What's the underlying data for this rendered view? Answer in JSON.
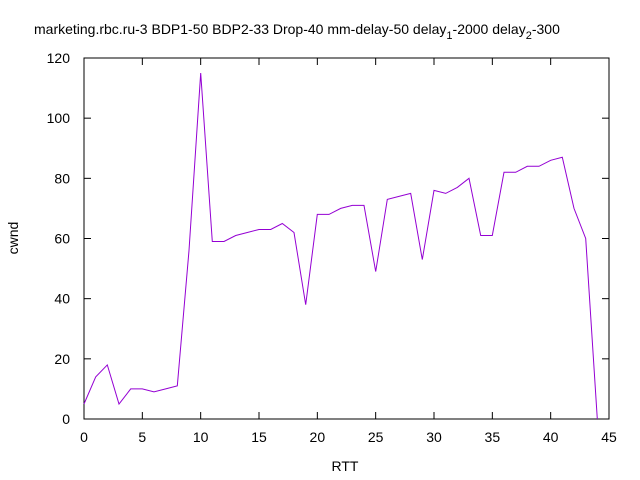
{
  "chart_data": {
    "type": "line",
    "title": "marketing.rbc.ru-3 BDP1-50 BDP2-33 Drop-40 mm-delay-50 delay",
    "title_sub1": "1",
    "title_mid": "-2000 delay",
    "title_sub2": "2",
    "title_end": "-300",
    "xlabel": "RTT",
    "ylabel": "cwnd",
    "xlim": [
      0,
      45
    ],
    "ylim": [
      0,
      120
    ],
    "xticks": [
      0,
      5,
      10,
      15,
      20,
      25,
      30,
      35,
      40,
      45
    ],
    "yticks": [
      0,
      20,
      40,
      60,
      80,
      100,
      120
    ],
    "grid": false,
    "series": [
      {
        "color": "#9400d3",
        "x": [
          0,
          1,
          2,
          3,
          4,
          5,
          6,
          7,
          8,
          9,
          10,
          11,
          12,
          13,
          14,
          15,
          16,
          17,
          18,
          19,
          20,
          21,
          22,
          23,
          24,
          25,
          26,
          27,
          28,
          29,
          30,
          31,
          32,
          33,
          34,
          35,
          36,
          37,
          38,
          39,
          40,
          41,
          42,
          43,
          44
        ],
        "y": [
          5,
          14,
          18,
          5,
          10,
          10,
          9,
          10,
          11,
          56,
          115,
          59,
          59,
          61,
          62,
          63,
          63,
          65,
          62,
          38,
          68,
          68,
          70,
          71,
          71,
          49,
          73,
          74,
          75,
          53,
          76,
          75,
          77,
          80,
          61,
          61,
          82,
          82,
          84,
          84,
          86,
          87,
          70,
          60,
          0
        ]
      }
    ]
  }
}
